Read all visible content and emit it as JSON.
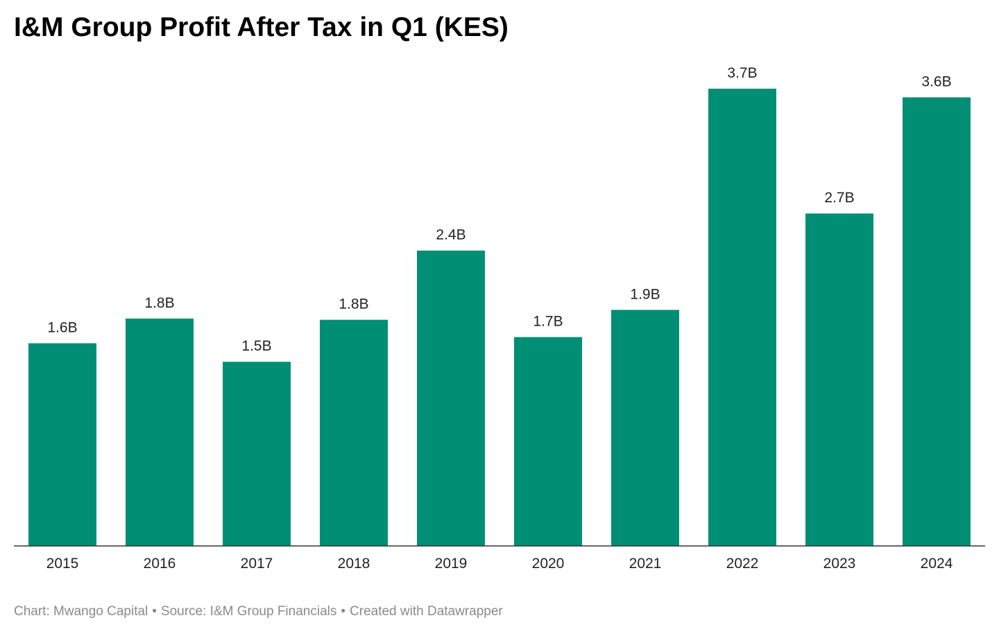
{
  "header": {
    "title": "I&M Group Profit After Tax in Q1 (KES)"
  },
  "footer": {
    "chart_credit": "Chart: Mwango Capital",
    "separator": "•",
    "source": "Source: I&M Group Financials",
    "created_with": "Created with Datawrapper"
  },
  "colors": {
    "bar": "#008f74",
    "baseline": "#333333"
  },
  "chart_data": {
    "type": "bar",
    "title": "I&M Group Profit After Tax in Q1 (KES)",
    "xlabel": "",
    "ylabel": "",
    "ylim": [
      0,
      3.7
    ],
    "grid": false,
    "categories": [
      "2015",
      "2016",
      "2017",
      "2018",
      "2019",
      "2020",
      "2021",
      "2022",
      "2023",
      "2024"
    ],
    "values": [
      1.64,
      1.84,
      1.49,
      1.83,
      2.39,
      1.69,
      1.91,
      3.7,
      2.69,
      3.63
    ],
    "value_labels": [
      "1.6B",
      "1.8B",
      "1.5B",
      "1.8B",
      "2.4B",
      "1.7B",
      "1.9B",
      "3.7B",
      "2.7B",
      "3.6B"
    ]
  }
}
